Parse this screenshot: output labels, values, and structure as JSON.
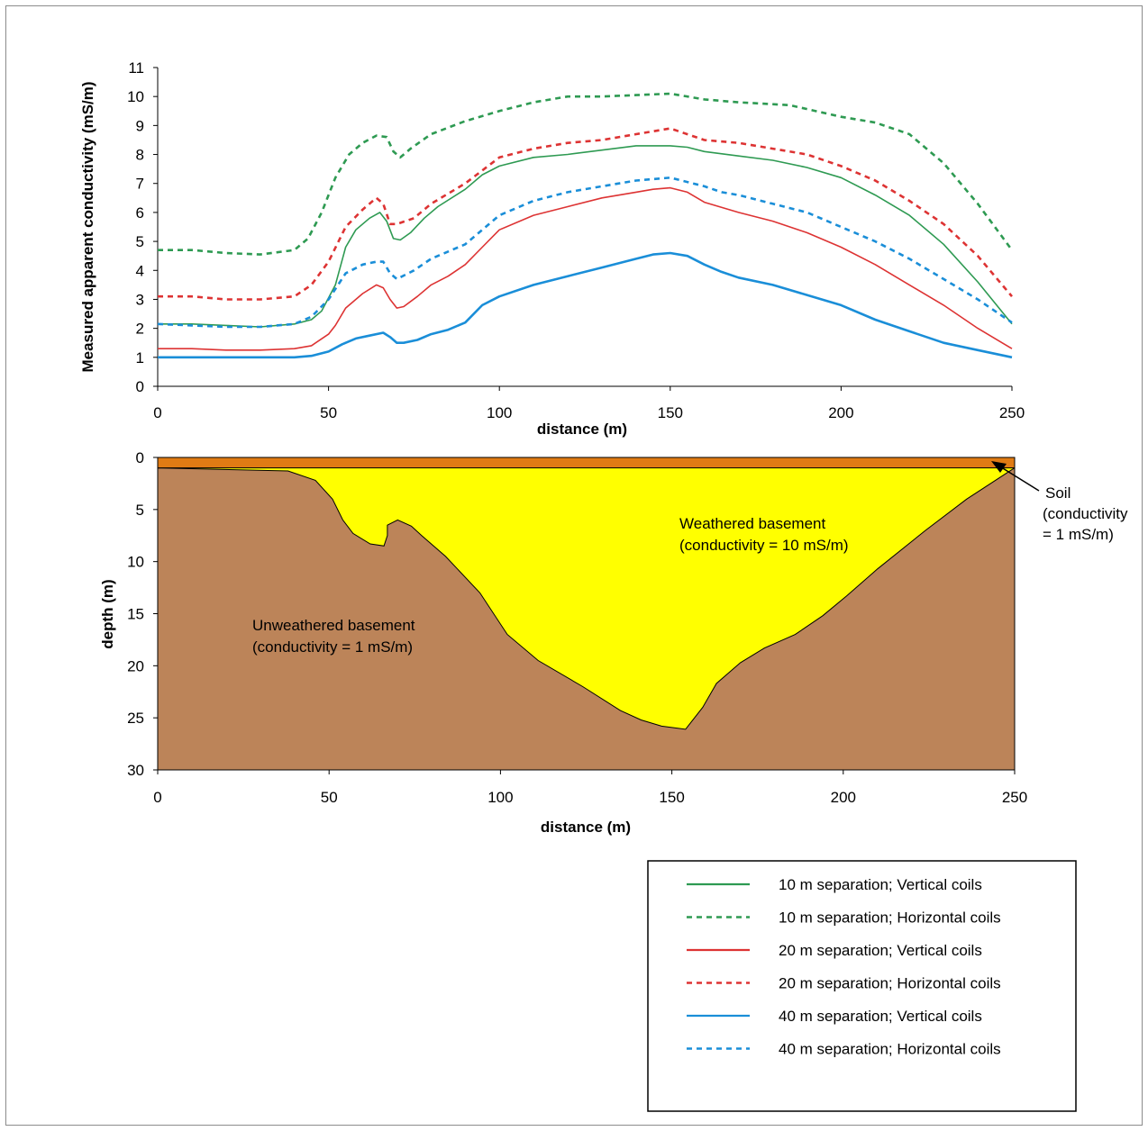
{
  "colors": {
    "green": "#2e9a52",
    "red": "#dd3333",
    "blue": "#1a8ed8",
    "soil": "#e07b14",
    "weathered": "#ffff00",
    "unweathered": "#bc8459"
  },
  "chart_data": [
    {
      "type": "line",
      "title": "",
      "xlabel": "distance (m)",
      "ylabel": "Measured apparent conductivity (mS/m)",
      "xlim": [
        0,
        250
      ],
      "ylim": [
        0,
        11
      ],
      "x_ticks": [
        "0",
        "50",
        "100",
        "150",
        "200",
        "250"
      ],
      "y_ticks": [
        "0",
        "1",
        "2",
        "3",
        "4",
        "5",
        "6",
        "7",
        "8",
        "9",
        "10",
        "11"
      ],
      "grid": false,
      "series": [
        {
          "name": "10 m  separation; Vertical coils",
          "color": "green",
          "dash": "solid",
          "points": [
            [
              0,
              2.15
            ],
            [
              10,
              2.15
            ],
            [
              20,
              2.1
            ],
            [
              30,
              2.05
            ],
            [
              40,
              2.15
            ],
            [
              45,
              2.3
            ],
            [
              48,
              2.6
            ],
            [
              52,
              3.5
            ],
            [
              55,
              4.8
            ],
            [
              58,
              5.4
            ],
            [
              62,
              5.8
            ],
            [
              65,
              6.0
            ],
            [
              67,
              5.7
            ],
            [
              69,
              5.1
            ],
            [
              71,
              5.05
            ],
            [
              74,
              5.3
            ],
            [
              78,
              5.8
            ],
            [
              82,
              6.2
            ],
            [
              90,
              6.8
            ],
            [
              95,
              7.3
            ],
            [
              100,
              7.6
            ],
            [
              110,
              7.9
            ],
            [
              120,
              8.0
            ],
            [
              130,
              8.15
            ],
            [
              140,
              8.3
            ],
            [
              150,
              8.3
            ],
            [
              155,
              8.25
            ],
            [
              160,
              8.1
            ],
            [
              170,
              7.95
            ],
            [
              180,
              7.8
            ],
            [
              190,
              7.55
            ],
            [
              200,
              7.2
            ],
            [
              210,
              6.6
            ],
            [
              220,
              5.9
            ],
            [
              230,
              4.9
            ],
            [
              240,
              3.6
            ],
            [
              250,
              2.15
            ]
          ]
        },
        {
          "name": "10 m  separation; Horizontal coils",
          "color": "green",
          "dash": "dashed",
          "points": [
            [
              0,
              4.7
            ],
            [
              10,
              4.7
            ],
            [
              20,
              4.6
            ],
            [
              30,
              4.55
            ],
            [
              40,
              4.7
            ],
            [
              44,
              5.1
            ],
            [
              48,
              6.0
            ],
            [
              52,
              7.2
            ],
            [
              56,
              8.0
            ],
            [
              60,
              8.4
            ],
            [
              64,
              8.65
            ],
            [
              67,
              8.6
            ],
            [
              69,
              8.1
            ],
            [
              71,
              7.9
            ],
            [
              74,
              8.2
            ],
            [
              80,
              8.7
            ],
            [
              90,
              9.15
            ],
            [
              100,
              9.5
            ],
            [
              110,
              9.8
            ],
            [
              120,
              10.0
            ],
            [
              130,
              10.0
            ],
            [
              140,
              10.05
            ],
            [
              150,
              10.1
            ],
            [
              160,
              9.9
            ],
            [
              170,
              9.8
            ],
            [
              185,
              9.7
            ],
            [
              200,
              9.3
            ],
            [
              210,
              9.1
            ],
            [
              220,
              8.7
            ],
            [
              230,
              7.7
            ],
            [
              240,
              6.3
            ],
            [
              250,
              4.7
            ]
          ]
        },
        {
          "name": "20 m  separation; Vertical coils",
          "color": "red",
          "dash": "solid",
          "points": [
            [
              0,
              1.3
            ],
            [
              10,
              1.3
            ],
            [
              20,
              1.25
            ],
            [
              30,
              1.25
            ],
            [
              40,
              1.3
            ],
            [
              45,
              1.4
            ],
            [
              50,
              1.8
            ],
            [
              52,
              2.1
            ],
            [
              55,
              2.7
            ],
            [
              60,
              3.2
            ],
            [
              64,
              3.5
            ],
            [
              66,
              3.4
            ],
            [
              68,
              3.0
            ],
            [
              70,
              2.7
            ],
            [
              72,
              2.75
            ],
            [
              76,
              3.1
            ],
            [
              80,
              3.5
            ],
            [
              85,
              3.8
            ],
            [
              90,
              4.2
            ],
            [
              95,
              4.8
            ],
            [
              100,
              5.4
            ],
            [
              110,
              5.9
            ],
            [
              120,
              6.2
            ],
            [
              130,
              6.5
            ],
            [
              140,
              6.7
            ],
            [
              145,
              6.8
            ],
            [
              150,
              6.85
            ],
            [
              155,
              6.7
            ],
            [
              160,
              6.35
            ],
            [
              170,
              6.0
            ],
            [
              180,
              5.7
            ],
            [
              190,
              5.3
            ],
            [
              200,
              4.8
            ],
            [
              210,
              4.2
            ],
            [
              220,
              3.5
            ],
            [
              230,
              2.8
            ],
            [
              240,
              2.0
            ],
            [
              250,
              1.3
            ]
          ]
        },
        {
          "name": "20 m  separation; Horizontal coils",
          "color": "red",
          "dash": "dashed",
          "points": [
            [
              0,
              3.1
            ],
            [
              10,
              3.1
            ],
            [
              20,
              3.0
            ],
            [
              30,
              3.0
            ],
            [
              40,
              3.1
            ],
            [
              45,
              3.5
            ],
            [
              50,
              4.3
            ],
            [
              55,
              5.5
            ],
            [
              60,
              6.1
            ],
            [
              64,
              6.5
            ],
            [
              66,
              6.3
            ],
            [
              68,
              5.6
            ],
            [
              70,
              5.6
            ],
            [
              75,
              5.8
            ],
            [
              80,
              6.3
            ],
            [
              90,
              7.0
            ],
            [
              100,
              7.9
            ],
            [
              110,
              8.2
            ],
            [
              120,
              8.4
            ],
            [
              130,
              8.5
            ],
            [
              140,
              8.7
            ],
            [
              150,
              8.9
            ],
            [
              160,
              8.5
            ],
            [
              170,
              8.4
            ],
            [
              180,
              8.2
            ],
            [
              190,
              8.0
            ],
            [
              200,
              7.6
            ],
            [
              210,
              7.1
            ],
            [
              220,
              6.4
            ],
            [
              230,
              5.6
            ],
            [
              240,
              4.5
            ],
            [
              250,
              3.1
            ]
          ]
        },
        {
          "name": "40 m  separation; Vertical coils",
          "color": "blue",
          "dash": "solid",
          "points": [
            [
              0,
              1.0
            ],
            [
              10,
              1.0
            ],
            [
              20,
              1.0
            ],
            [
              30,
              1.0
            ],
            [
              40,
              1.0
            ],
            [
              45,
              1.05
            ],
            [
              50,
              1.2
            ],
            [
              54,
              1.45
            ],
            [
              58,
              1.65
            ],
            [
              62,
              1.75
            ],
            [
              66,
              1.85
            ],
            [
              68,
              1.7
            ],
            [
              70,
              1.5
            ],
            [
              72,
              1.5
            ],
            [
              76,
              1.6
            ],
            [
              80,
              1.8
            ],
            [
              85,
              1.95
            ],
            [
              90,
              2.2
            ],
            [
              95,
              2.8
            ],
            [
              100,
              3.1
            ],
            [
              110,
              3.5
            ],
            [
              120,
              3.8
            ],
            [
              130,
              4.1
            ],
            [
              140,
              4.4
            ],
            [
              145,
              4.55
            ],
            [
              150,
              4.6
            ],
            [
              155,
              4.5
            ],
            [
              160,
              4.2
            ],
            [
              165,
              3.95
            ],
            [
              170,
              3.75
            ],
            [
              180,
              3.5
            ],
            [
              190,
              3.15
            ],
            [
              200,
              2.8
            ],
            [
              210,
              2.3
            ],
            [
              220,
              1.9
            ],
            [
              230,
              1.5
            ],
            [
              240,
              1.25
            ],
            [
              250,
              1.0
            ]
          ]
        },
        {
          "name": "40 m  separation; Horizontal coils",
          "color": "blue",
          "dash": "dashed",
          "points": [
            [
              0,
              2.15
            ],
            [
              10,
              2.1
            ],
            [
              20,
              2.05
            ],
            [
              30,
              2.05
            ],
            [
              40,
              2.15
            ],
            [
              45,
              2.4
            ],
            [
              50,
              3.0
            ],
            [
              55,
              3.9
            ],
            [
              60,
              4.2
            ],
            [
              64,
              4.3
            ],
            [
              66,
              4.3
            ],
            [
              68,
              3.9
            ],
            [
              70,
              3.7
            ],
            [
              75,
              4.0
            ],
            [
              80,
              4.4
            ],
            [
              90,
              4.9
            ],
            [
              100,
              5.9
            ],
            [
              110,
              6.4
            ],
            [
              120,
              6.7
            ],
            [
              130,
              6.9
            ],
            [
              140,
              7.1
            ],
            [
              150,
              7.2
            ],
            [
              160,
              6.9
            ],
            [
              165,
              6.7
            ],
            [
              170,
              6.6
            ],
            [
              180,
              6.3
            ],
            [
              190,
              6.0
            ],
            [
              200,
              5.5
            ],
            [
              210,
              5.0
            ],
            [
              220,
              4.4
            ],
            [
              230,
              3.7
            ],
            [
              240,
              3.0
            ],
            [
              250,
              2.2
            ]
          ]
        }
      ],
      "legend_position": "bottom-right"
    },
    {
      "type": "area",
      "title": "",
      "xlabel": "distance (m)",
      "ylabel": "depth (m)",
      "xlim": [
        0,
        250
      ],
      "ylim": [
        30,
        0
      ],
      "x_ticks": [
        "0",
        "50",
        "100",
        "150",
        "200",
        "250"
      ],
      "y_ticks": [
        "0",
        "5",
        "10",
        "15",
        "20",
        "25",
        "30"
      ],
      "grid": false,
      "soil_depth": 1,
      "basement_boundary": [
        [
          0,
          1
        ],
        [
          38,
          1.3
        ],
        [
          46,
          2.2
        ],
        [
          51,
          4.0
        ],
        [
          54,
          6.0
        ],
        [
          57,
          7.3
        ],
        [
          62,
          8.3
        ],
        [
          66,
          8.5
        ],
        [
          67,
          7.5
        ],
        [
          67,
          6.5
        ],
        [
          70,
          6.0
        ],
        [
          74,
          6.6
        ],
        [
          77,
          7.5
        ],
        [
          84,
          9.5
        ],
        [
          94,
          13.0
        ],
        [
          102,
          17.0
        ],
        [
          111,
          19.5
        ],
        [
          124,
          22.0
        ],
        [
          135,
          24.3
        ],
        [
          141,
          25.2
        ],
        [
          147,
          25.8
        ],
        [
          154,
          26.1
        ],
        [
          159,
          24.0
        ],
        [
          163,
          21.7
        ],
        [
          170,
          19.7
        ],
        [
          177,
          18.3
        ],
        [
          186,
          17.0
        ],
        [
          194,
          15.2
        ],
        [
          201,
          13.3
        ],
        [
          210,
          10.7
        ],
        [
          224,
          7.0
        ],
        [
          236,
          4.0
        ],
        [
          250,
          1.0
        ]
      ],
      "annotations": {
        "weathered": [
          "Weathered basement",
          "(conductivity = 10 mS/m)"
        ],
        "unweathered": [
          "Unweathered basement",
          "(conductivity = 1 mS/m)"
        ],
        "soil": [
          "Soil",
          "(conductivity",
          "= 1 mS/m)"
        ]
      }
    }
  ]
}
